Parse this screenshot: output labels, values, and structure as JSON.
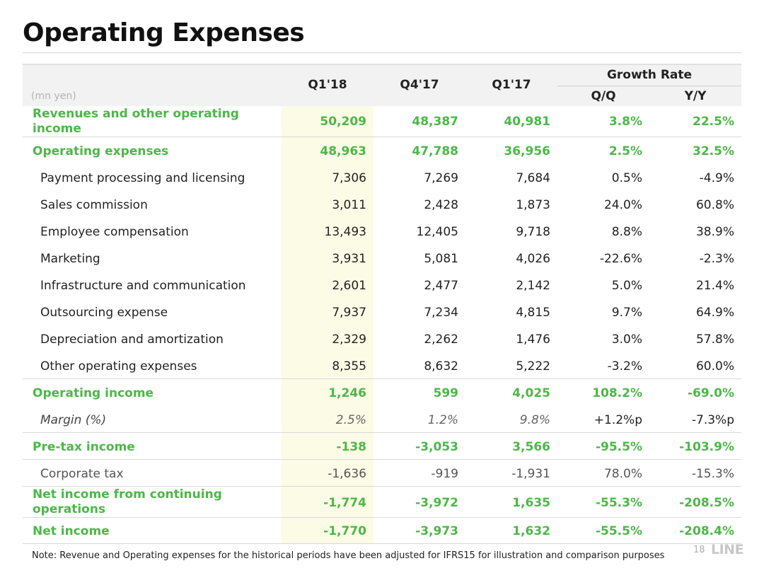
{
  "title": "Operating Expenses",
  "unit": "(mn yen)",
  "headers": {
    "q1_18": "Q1'18",
    "q4_17": "Q4'17",
    "q1_17": "Q1'17",
    "growth": "Growth Rate",
    "qq": "Q/Q",
    "yy": "Y/Y"
  },
  "rows": [
    {
      "label_line1": "Revenues and other operating",
      "label_line2": "income",
      "q1_18": "50,209",
      "q4_17": "48,387",
      "q1_17": "40,981",
      "qq": "3.8%",
      "yy": "22.5%"
    },
    {
      "label": "Operating expenses",
      "q1_18": "48,963",
      "q4_17": "47,788",
      "q1_17": "36,956",
      "qq": "2.5%",
      "yy": "32.5%"
    },
    {
      "label": "Payment processing and licensing",
      "q1_18": "7,306",
      "q4_17": "7,269",
      "q1_17": "7,684",
      "qq": "0.5%",
      "yy": "-4.9%"
    },
    {
      "label": "Sales commission",
      "q1_18": "3,011",
      "q4_17": "2,428",
      "q1_17": "1,873",
      "qq": "24.0%",
      "yy": "60.8%"
    },
    {
      "label": "Employee compensation",
      "q1_18": "13,493",
      "q4_17": "12,405",
      "q1_17": "9,718",
      "qq": "8.8%",
      "yy": "38.9%"
    },
    {
      "label": "Marketing",
      "q1_18": "3,931",
      "q4_17": "5,081",
      "q1_17": "4,026",
      "qq": "-22.6%",
      "yy": "-2.3%"
    },
    {
      "label": "Infrastructure and communication",
      "q1_18": "2,601",
      "q4_17": "2,477",
      "q1_17": "2,142",
      "qq": "5.0%",
      "yy": "21.4%"
    },
    {
      "label": "Outsourcing expense",
      "q1_18": "7,937",
      "q4_17": "7,234",
      "q1_17": "4,815",
      "qq": "9.7%",
      "yy": "64.9%"
    },
    {
      "label": "Depreciation and amortization",
      "q1_18": "2,329",
      "q4_17": "2,262",
      "q1_17": "1,476",
      "qq": "3.0%",
      "yy": "57.8%"
    },
    {
      "label": "Other operating expenses",
      "q1_18": "8,355",
      "q4_17": "8,632",
      "q1_17": "5,222",
      "qq": "-3.2%",
      "yy": "60.0%"
    },
    {
      "label": "Operating income",
      "q1_18": "1,246",
      "q4_17": "599",
      "q1_17": "4,025",
      "qq": "108.2%",
      "yy": "-69.0%"
    },
    {
      "label": "Margin (%)",
      "q1_18": "2.5%",
      "q4_17": "1.2%",
      "q1_17": "9.8%",
      "qq": "+1.2%p",
      "yy": "-7.3%p"
    },
    {
      "label": "Pre-tax income",
      "q1_18": "-138",
      "q4_17": "-3,053",
      "q1_17": "3,566",
      "qq": "-95.5%",
      "yy": "-103.9%"
    },
    {
      "label": "Corporate tax",
      "q1_18": "-1,636",
      "q4_17": "-919",
      "q1_17": "-1,931",
      "qq": "78.0%",
      "yy": "-15.3%"
    },
    {
      "label_line1": "Net income from continuing",
      "label_line2": "operations",
      "q1_18": "-1,774",
      "q4_17": "-3,972",
      "q1_17": "1,635",
      "qq": "-55.3%",
      "yy": "-208.5%"
    },
    {
      "label": "Net income",
      "q1_18": "-1,770",
      "q4_17": "-3,973",
      "q1_17": "1,632",
      "qq": "-55.5%",
      "yy": "-208.4%"
    }
  ],
  "footnote": "Note: Revenue and Operating expenses for the historical periods have been adjusted for IFRS15 for illustration and comparison purposes",
  "page_number": "18",
  "logo_text": "LINE",
  "colors": {
    "accent_green": "#4cb848",
    "highlight": "#fbfbe6",
    "header_bg": "#f2f2f2"
  }
}
